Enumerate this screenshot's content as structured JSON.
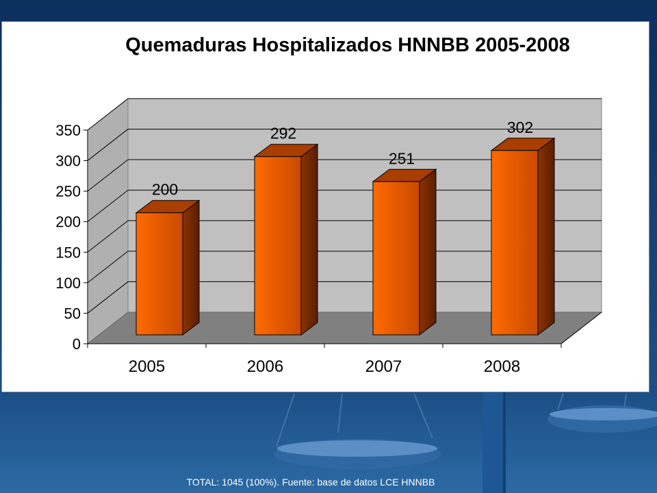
{
  "colors": {
    "bar_front": "#ff6a00",
    "bar_dark": "#5a1e00",
    "wall": "#c0c0c0",
    "floor": "#808080",
    "background": "#0d3566"
  },
  "chart_data": {
    "type": "bar",
    "title": "Quemaduras Hospitalizados HNNBB 2005-2008",
    "categories": [
      "2005",
      "2006",
      "2007",
      "2008"
    ],
    "values": [
      200,
      292,
      251,
      302
    ],
    "data_labels": [
      "200",
      "292",
      "251",
      "302"
    ],
    "ylim": [
      0,
      350
    ],
    "yticks": [
      0,
      50,
      100,
      150,
      200,
      250,
      300,
      350
    ],
    "grid": true,
    "style": "3d-column"
  },
  "footer": {
    "text": "TOTAL: 1045 (100%). Fuente: base de datos LCE HNNBB"
  }
}
